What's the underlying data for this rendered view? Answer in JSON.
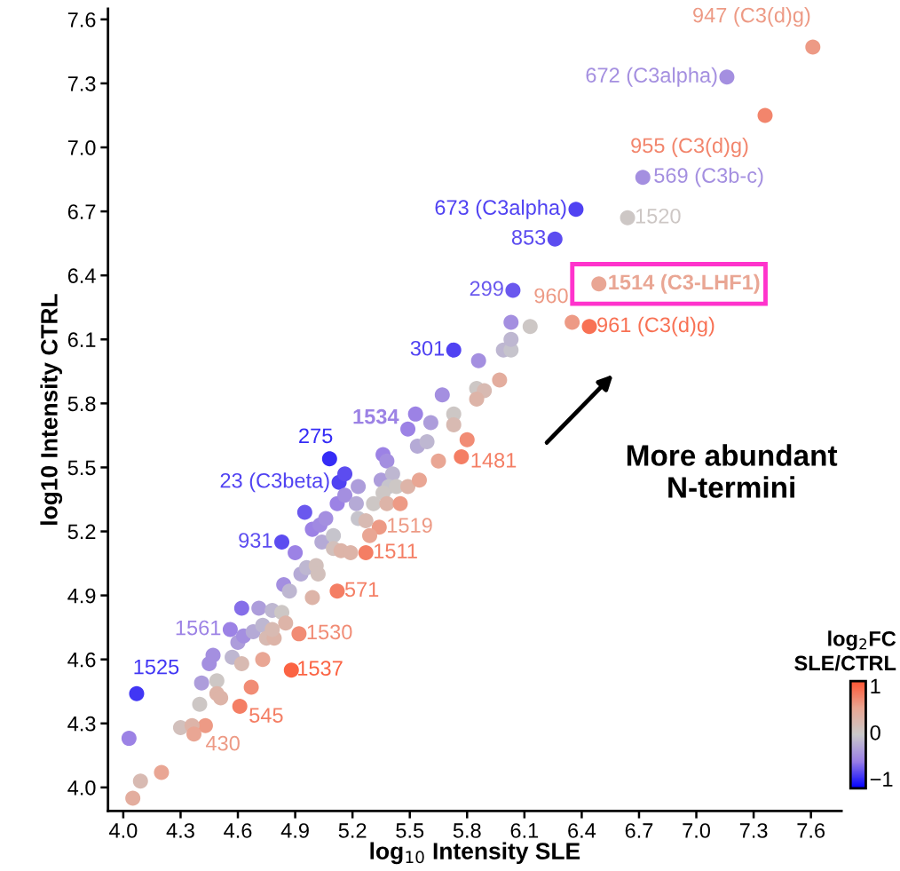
{
  "chart_data": {
    "type": "scatter",
    "xlabel": "log$_{10}$ Intensity SLE",
    "ylabel": "log10 Intensity CTRL",
    "clabel": "log$_{2}$FC\nSLE/CTRL",
    "xlim": [
      3.92,
      7.76
    ],
    "ylim": [
      3.89,
      7.65
    ],
    "xticks": [
      {
        "value": 4.0,
        "label": "4.0"
      },
      4.3,
      4.6,
      4.9,
      5.2,
      5.5,
      5.8,
      6.1,
      6.4,
      6.7,
      {
        "value": 7.0,
        "label": "7.0"
      },
      7.3,
      7.6
    ],
    "yticks": [
      {
        "value": 4.0,
        "label": "4.0"
      },
      4.3,
      4.6,
      4.9,
      5.2,
      5.5,
      5.8,
      6.1,
      6.4,
      6.7,
      {
        "value": 7.0,
        "label": "7.0"
      },
      7.3,
      7.6
    ],
    "clim": [
      -1.2,
      1.1
    ],
    "cticks": [
      -1,
      0,
      1
    ],
    "marker": "circle",
    "grid": false,
    "legend": false,
    "x": [
      7.61,
      7.16,
      7.36,
      6.72,
      6.64,
      6.37,
      6.26,
      6.49,
      6.04,
      6.35,
      6.44,
      5.73,
      5.53,
      5.49,
      5.77,
      5.08,
      5.13,
      5.16,
      4.83,
      5.34,
      5.27,
      5.12,
      4.92,
      4.88,
      4.61,
      4.43,
      4.56,
      4.07,
      4.03,
      4.09,
      4.2,
      4.05,
      4.3,
      4.36,
      4.37,
      4.4,
      4.41,
      4.45,
      4.47,
      4.49,
      4.49,
      4.51,
      4.57,
      4.62,
      4.67,
      4.73,
      4.6,
      4.63,
      4.68,
      4.73,
      4.75,
      4.79,
      4.78,
      4.62,
      4.71,
      4.78,
      4.83,
      4.85,
      4.84,
      4.87,
      4.99,
      4.9,
      4.93,
      4.96,
      5.01,
      5.02,
      4.99,
      5.03,
      5.06,
      5.04,
      5.1,
      5.1,
      5.14,
      5.19,
      4.95,
      5.12,
      5.16,
      5.22,
      5.23,
      5.23,
      5.27,
      5.31,
      5.29,
      5.36,
      5.38,
      5.35,
      5.41,
      5.39,
      5.43,
      5.36,
      5.38,
      5.45,
      5.49,
      5.55,
      5.65,
      5.8,
      5.54,
      5.59,
      5.61,
      5.73,
      5.73,
      5.67,
      5.85,
      5.89,
      5.85,
      5.97,
      5.86,
      5.99,
      6.03,
      6.03,
      6.03,
      6.13
    ],
    "values": [
      7.47,
      7.33,
      7.15,
      6.86,
      6.67,
      6.71,
      6.57,
      6.36,
      6.33,
      6.18,
      6.16,
      6.05,
      5.75,
      5.68,
      5.55,
      5.54,
      5.43,
      5.47,
      5.15,
      5.22,
      5.1,
      4.92,
      4.72,
      4.55,
      4.38,
      4.29,
      4.74,
      4.44,
      4.23,
      4.03,
      4.07,
      3.95,
      4.28,
      4.29,
      4.25,
      4.39,
      4.49,
      4.58,
      4.62,
      4.5,
      4.44,
      4.42,
      4.61,
      4.58,
      4.47,
      4.6,
      4.68,
      4.71,
      4.73,
      4.76,
      4.7,
      4.7,
      4.74,
      4.84,
      4.84,
      4.83,
      4.82,
      4.77,
      4.95,
      4.92,
      4.89,
      5.1,
      5.0,
      5.03,
      5.04,
      5.0,
      5.21,
      5.23,
      5.26,
      5.15,
      5.18,
      5.12,
      5.11,
      5.1,
      5.29,
      5.33,
      5.37,
      5.33,
      5.41,
      5.26,
      5.25,
      5.33,
      5.18,
      5.56,
      5.53,
      5.44,
      5.47,
      5.41,
      5.41,
      5.38,
      5.33,
      5.33,
      5.41,
      5.44,
      5.53,
      5.63,
      5.6,
      5.62,
      5.71,
      5.75,
      5.7,
      5.84,
      5.87,
      5.86,
      5.82,
      5.91,
      6.0,
      6.05,
      6.05,
      6.1,
      6.18,
      6.16
    ],
    "cvalues": [
      0.6,
      -0.5,
      0.75,
      -0.5,
      0,
      -0.9,
      -0.85,
      0.5,
      -0.8,
      0.6,
      0.9,
      -0.9,
      -0.6,
      -0.6,
      0.8,
      -1,
      -0.9,
      -0.85,
      -0.85,
      0.6,
      0.8,
      0.8,
      0.7,
      1.0,
      0.8,
      0.6,
      -0.6,
      -0.95,
      -0.6,
      0.2,
      0.5,
      0.4,
      0.1,
      0.3,
      0.5,
      0,
      -0.4,
      -0.5,
      -0.5,
      0,
      0.3,
      0.3,
      -0.2,
      0.2,
      0.7,
      0.5,
      -0.4,
      -0.5,
      -0.3,
      -0.2,
      0.2,
      0.3,
      0.2,
      -0.7,
      -0.4,
      -0.2,
      0,
      0.3,
      -0.5,
      -0.2,
      0.3,
      -0.6,
      -0.3,
      -0.2,
      0.1,
      0.1,
      -0.6,
      -0.55,
      -0.5,
      -0.3,
      -0.1,
      0.1,
      0.3,
      0.3,
      -0.8,
      -0.6,
      -0.5,
      -0.3,
      -0.4,
      -0.1,
      0.2,
      0,
      0.5,
      -0.6,
      -0.5,
      -0.4,
      -0.2,
      -0.1,
      0,
      0,
      0.3,
      0.6,
      0.3,
      0.5,
      0.5,
      0.7,
      -0.3,
      -0.2,
      -0.4,
      0,
      0.2,
      -0.5,
      0,
      0.2,
      0.3,
      0.4,
      -0.5,
      -0.2,
      -0.1,
      -0.2,
      -0.5,
      0
    ],
    "annotations": [
      {
        "text": "947 (C3(d)g)",
        "x": 7.61,
        "y": 7.47
      },
      {
        "text": "672 (C3alpha)",
        "x": 7.16,
        "y": 7.33
      },
      {
        "text": "955 (C3(d)g)",
        "x": 7.36,
        "y": 7.15
      },
      {
        "text": "569 (C3b-c)",
        "x": 6.72,
        "y": 6.86
      },
      {
        "text": "1520",
        "x": 6.64,
        "y": 6.67
      },
      {
        "text": "673 (C3alpha)",
        "x": 6.37,
        "y": 6.71
      },
      {
        "text": "853",
        "x": 6.26,
        "y": 6.57
      },
      {
        "text": "1514 (C3-LHF1)",
        "x": 6.49,
        "y": 6.36
      },
      {
        "text": "299",
        "x": 6.04,
        "y": 6.33
      },
      {
        "text": "960",
        "x": 6.35,
        "y": 6.18
      },
      {
        "text": "961 (C3(d)g)",
        "x": 6.44,
        "y": 6.16
      },
      {
        "text": "301",
        "x": 5.73,
        "y": 6.05
      },
      {
        "text": "1534",
        "x": 5.49,
        "y": 5.68
      },
      {
        "text": "1481",
        "x": 5.77,
        "y": 5.55
      },
      {
        "text": "275",
        "x": 5.08,
        "y": 5.54
      },
      {
        "text": "23 (C3beta)",
        "x": 5.13,
        "y": 5.43
      },
      {
        "text": "931",
        "x": 4.83,
        "y": 5.15
      },
      {
        "text": "1519",
        "x": 5.34,
        "y": 5.22
      },
      {
        "text": "1511",
        "x": 5.27,
        "y": 5.1
      },
      {
        "text": "571",
        "x": 5.12,
        "y": 4.92
      },
      {
        "text": "1530",
        "x": 4.92,
        "y": 4.72
      },
      {
        "text": "1537",
        "x": 4.88,
        "y": 4.55
      },
      {
        "text": "545",
        "x": 4.61,
        "y": 4.38
      },
      {
        "text": "430",
        "x": 4.43,
        "y": 4.29
      },
      {
        "text": "1561",
        "x": 4.56,
        "y": 4.74
      },
      {
        "text": "1525",
        "x": 4.07,
        "y": 4.44
      },
      "More abundant\nN-termini"
    ]
  }
}
